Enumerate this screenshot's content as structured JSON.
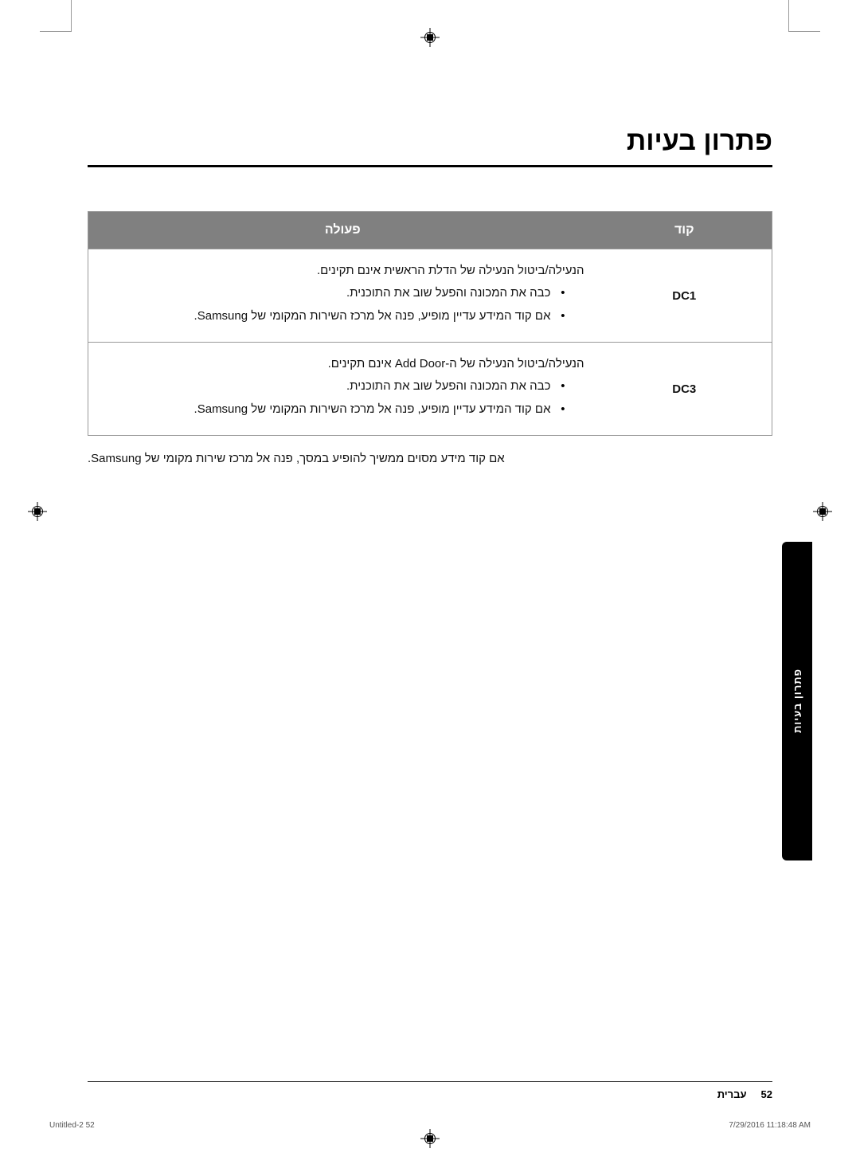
{
  "title": "פתרון בעיות",
  "table": {
    "headers": {
      "code": "קוד",
      "action": "פעולה"
    },
    "rows": [
      {
        "code": "DC1",
        "intro": "הנעילה/ביטול הנעילה של הדלת הראשית אינם תקינים.",
        "items": [
          "כבה את המכונה והפעל שוב את התוכנית.",
          "אם קוד המידע עדיין מופיע, פנה אל מרכז השירות המקומי של Samsung."
        ]
      },
      {
        "code": "DC3",
        "intro": "הנעילה/ביטול הנעילה של ה-Add Door אינם תקינים.",
        "items": [
          "כבה את המכונה והפעל שוב את התוכנית.",
          "אם קוד המידע עדיין מופיע, פנה אל מרכז השירות המקומי של Samsung."
        ]
      }
    ]
  },
  "footnote": "אם קוד מידע מסוים ממשיך להופיע במסך, פנה אל מרכז שירות מקומי של Samsung.",
  "sideTab": "פתרון בעיות",
  "footer": {
    "pageNumber": "52",
    "language": "עברית"
  },
  "meta": {
    "docRef": "Untitled-2   52",
    "timestamp": "7/29/2016   11:18:48 AM"
  }
}
